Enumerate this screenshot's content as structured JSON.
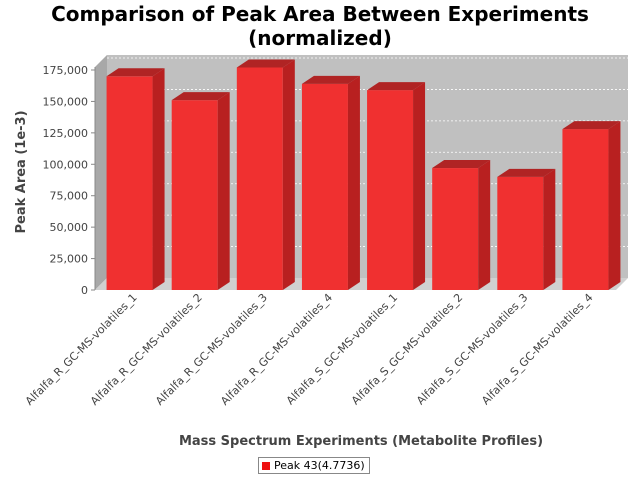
{
  "chart_data": {
    "type": "bar",
    "title_lines": [
      "Comparison of Peak Area Between Experiments",
      "(normalized)"
    ],
    "xlabel": "Mass Spectrum Experiments (Metabolite Profiles)",
    "ylabel": "Peak Area (1e-3)",
    "ylim": [
      0,
      175000
    ],
    "yticks": [
      0,
      25000,
      50000,
      75000,
      100000,
      125000,
      150000,
      175000
    ],
    "ytick_labels": [
      "0",
      "25,000",
      "50,000",
      "75,000",
      "100,000",
      "125,000",
      "150,000",
      "175,000"
    ],
    "categories": [
      "Alfalfa_R_GC-MS-volatiles_1",
      "Alfalfa_R_GC-MS-volatiles_2",
      "Alfalfa_R_GC-MS-volatiles_3",
      "Alfalfa_R_GC-MS-volatiles_4",
      "Alfalfa_S_GC-MS-volatiles_1",
      "Alfalfa_S_GC-MS-volatiles_2",
      "Alfalfa_S_GC-MS-volatiles_3",
      "Alfalfa_S_GC-MS-volatiles_4"
    ],
    "series": [
      {
        "name": "Peak 43(4.7736)",
        "values": [
          170000,
          151000,
          177000,
          164000,
          159000,
          97000,
          90000,
          128000
        ],
        "color": "#ee1111"
      }
    ],
    "grid": true,
    "legend_position": "bottom"
  }
}
